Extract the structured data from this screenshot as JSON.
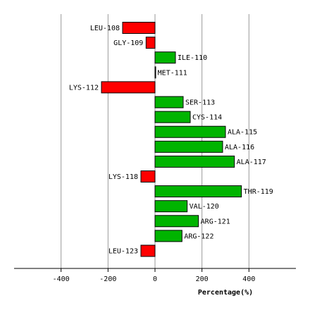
{
  "chart_data": {
    "type": "bar",
    "orientation": "horizontal",
    "xlabel": "Percentage(%)",
    "xlim": [
      -600,
      600
    ],
    "xticks": [
      -400,
      -200,
      0,
      200,
      400
    ],
    "xtick_labels": [
      "-400",
      "-200",
      "0",
      "200",
      "400"
    ],
    "grid": "vertical",
    "positive_color": "#00b400",
    "negative_color": "#ff0000",
    "categories": [
      "LEU-108",
      "GLY-109",
      "ILE-110",
      "MET-111",
      "LYS-112",
      "SER-113",
      "CYS-114",
      "ALA-115",
      "ALA-116",
      "ALA-117",
      "LYS-118",
      "THR-119",
      "VAL-120",
      "ARG-121",
      "ARG-122",
      "LEU-123"
    ],
    "values": [
      -138,
      -38,
      87,
      2,
      -228,
      120,
      150,
      300,
      288,
      338,
      -60,
      368,
      137,
      185,
      115,
      -60
    ]
  }
}
